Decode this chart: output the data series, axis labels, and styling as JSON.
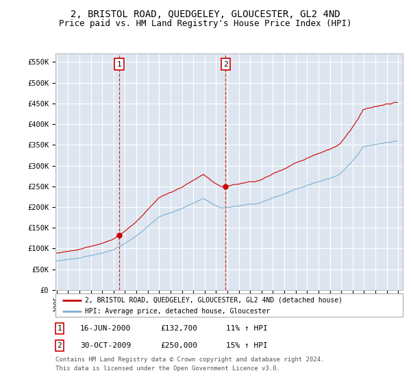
{
  "title": "2, BRISTOL ROAD, QUEDGELEY, GLOUCESTER, GL2 4ND",
  "subtitle": "Price paid vs. HM Land Registry's House Price Index (HPI)",
  "title_fontsize": 10,
  "subtitle_fontsize": 9,
  "background_color": "#ffffff",
  "plot_bg_color": "#dde6f0",
  "grid_color": "#ffffff",
  "ylim": [
    0,
    570000
  ],
  "yticks": [
    0,
    50000,
    100000,
    150000,
    200000,
    250000,
    300000,
    350000,
    400000,
    450000,
    500000,
    550000
  ],
  "ytick_labels": [
    "£0",
    "£50K",
    "£100K",
    "£150K",
    "£200K",
    "£250K",
    "£300K",
    "£350K",
    "£400K",
    "£450K",
    "£500K",
    "£550K"
  ],
  "x_start_year": 1995,
  "x_end_year": 2025,
  "sale1_date": 2000.46,
  "sale1_price": 132700,
  "sale2_date": 2009.83,
  "sale2_price": 250000,
  "legend_line1": "2, BRISTOL ROAD, QUEDGELEY, GLOUCESTER, GL2 4ND (detached house)",
  "legend_line2": "HPI: Average price, detached house, Gloucester",
  "table_row1_num": "1",
  "table_row1_date": "16-JUN-2000",
  "table_row1_price": "£132,700",
  "table_row1_hpi": "11% ↑ HPI",
  "table_row2_num": "2",
  "table_row2_date": "30-OCT-2009",
  "table_row2_price": "£250,000",
  "table_row2_hpi": "15% ↑ HPI",
  "footer_line1": "Contains HM Land Registry data © Crown copyright and database right 2024.",
  "footer_line2": "This data is licensed under the Open Government Licence v3.0.",
  "red_color": "#cc0000",
  "blue_color": "#7bafd4",
  "dashed_color": "#cc0000",
  "hpi_base_1995": 72000,
  "prop_base_1995": 78000
}
